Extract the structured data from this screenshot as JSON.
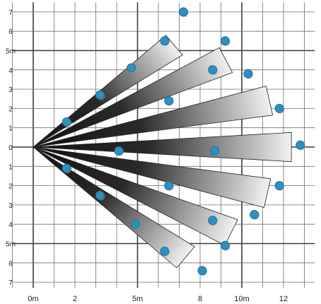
{
  "colors": {
    "grid": "#6f6f6f",
    "gridBold": "#3a3a3a",
    "dot": "#2f8fbf",
    "dotDark": "#1d6e96",
    "beamDark": "#111111",
    "beamLight": "#f2f2f2"
  },
  "axes": {
    "x_ticks": [
      {
        "v": 0,
        "text": "0m"
      },
      {
        "v": 2,
        "text": "2"
      },
      {
        "v": 5,
        "text": "5m"
      },
      {
        "v": 8,
        "text": "8"
      },
      {
        "v": 10,
        "text": "10m"
      },
      {
        "v": 12,
        "text": "12"
      }
    ],
    "y_ticks": [
      {
        "v": 7,
        "text": "7"
      },
      {
        "v": 6,
        "text": "6"
      },
      {
        "v": 5,
        "text": "5m"
      },
      {
        "v": 4,
        "text": "4"
      },
      {
        "v": 3,
        "text": "3"
      },
      {
        "v": 2,
        "text": "2"
      },
      {
        "v": 1,
        "text": "1"
      },
      {
        "v": 0,
        "text": "0"
      },
      {
        "v": -1,
        "text": "1"
      },
      {
        "v": -2,
        "text": "2"
      },
      {
        "v": -3,
        "text": "3"
      },
      {
        "v": -4,
        "text": "4"
      },
      {
        "v": -5,
        "text": "5m"
      },
      {
        "v": -6,
        "text": "6"
      },
      {
        "v": -7,
        "text": "7"
      }
    ],
    "x_range": [
      -1,
      13.5
    ],
    "y_range": [
      -7.3,
      7.5
    ],
    "bold_lines": {
      "x": [
        0,
        5,
        10
      ],
      "y": [
        5,
        0,
        -5
      ]
    }
  },
  "beams": [
    {
      "angle_deg": 38,
      "length_m": 8.6,
      "half_width_deg": 4.3
    },
    {
      "angle_deg": 26,
      "length_m": 10.3,
      "half_width_deg": 4.0
    },
    {
      "angle_deg": 12,
      "length_m": 11.6,
      "half_width_deg": 3.8
    },
    {
      "angle_deg": 0,
      "length_m": 12.4,
      "half_width_deg": 3.5
    },
    {
      "angle_deg": -12,
      "length_m": 11.5,
      "half_width_deg": 3.8
    },
    {
      "angle_deg": -25,
      "length_m": 10.5,
      "half_width_deg": 4.0
    },
    {
      "angle_deg": -38,
      "length_m": 9.3,
      "half_width_deg": 4.3
    }
  ],
  "dots": [
    {
      "x": 7.2,
      "y": 7.0
    },
    {
      "x": 6.3,
      "y": 5.5
    },
    {
      "x": 4.7,
      "y": 4.1
    },
    {
      "x": 3.2,
      "y": 2.7
    },
    {
      "x": 1.6,
      "y": 1.3
    },
    {
      "x": 9.2,
      "y": 5.5
    },
    {
      "x": 8.6,
      "y": 4.0
    },
    {
      "x": 10.3,
      "y": 3.8
    },
    {
      "x": 6.5,
      "y": 2.4
    },
    {
      "x": 11.8,
      "y": 2.0
    },
    {
      "x": 4.1,
      "y": -0.2
    },
    {
      "x": 8.7,
      "y": -0.2
    },
    {
      "x": 12.8,
      "y": 0.1
    },
    {
      "x": 1.6,
      "y": -1.1
    },
    {
      "x": 6.5,
      "y": -2.0
    },
    {
      "x": 11.8,
      "y": -2.0
    },
    {
      "x": 3.2,
      "y": -2.5
    },
    {
      "x": 10.6,
      "y": -3.5
    },
    {
      "x": 4.9,
      "y": -4.0
    },
    {
      "x": 8.6,
      "y": -3.8
    },
    {
      "x": 9.2,
      "y": -5.1
    },
    {
      "x": 6.3,
      "y": -5.4
    },
    {
      "x": 8.1,
      "y": -6.4
    }
  ]
}
